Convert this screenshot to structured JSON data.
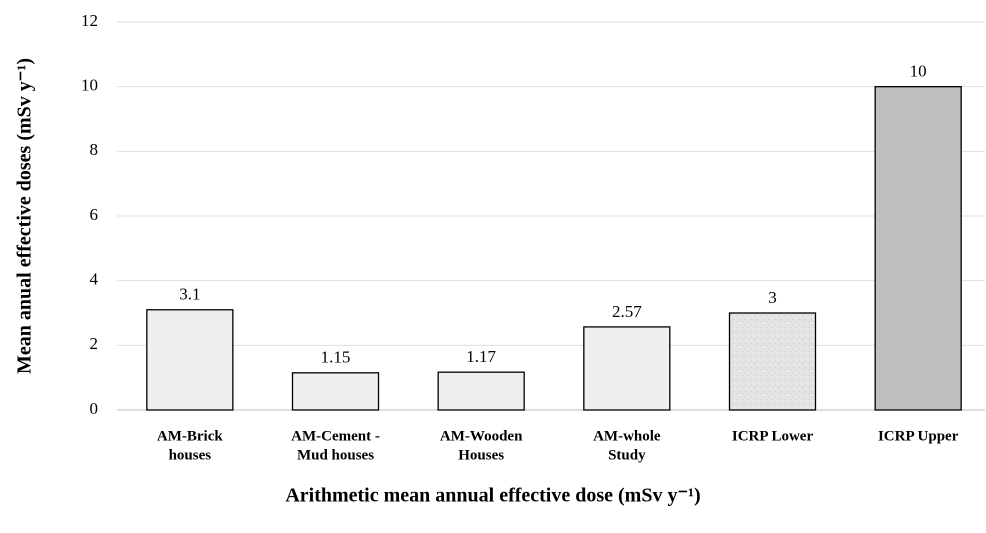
{
  "chart_data": {
    "type": "bar",
    "y_label": "Mean anual effective doses (mSv y⁻¹)",
    "x_label": "Arithmetic mean annual effective dose (mSv y⁻¹)",
    "categories": [
      [
        "AM-Brick",
        "houses"
      ],
      [
        "AM-Cement -",
        "Mud houses"
      ],
      [
        "AM-Wooden",
        "Houses"
      ],
      [
        "AM-whole",
        "Study"
      ],
      [
        "ICRP Lower"
      ],
      [
        "ICRP Upper"
      ]
    ],
    "values": [
      3.1,
      1.15,
      1.17,
      2.57,
      3,
      10
    ],
    "colors": [
      "#efefef",
      "#efefef",
      "#efefef",
      "#efefef",
      "#e2e2e2",
      "#bfbfbf"
    ],
    "ylim": [
      0,
      12
    ],
    "yticks": [
      0,
      2,
      4,
      6,
      8,
      10,
      12
    ],
    "grid": true
  }
}
